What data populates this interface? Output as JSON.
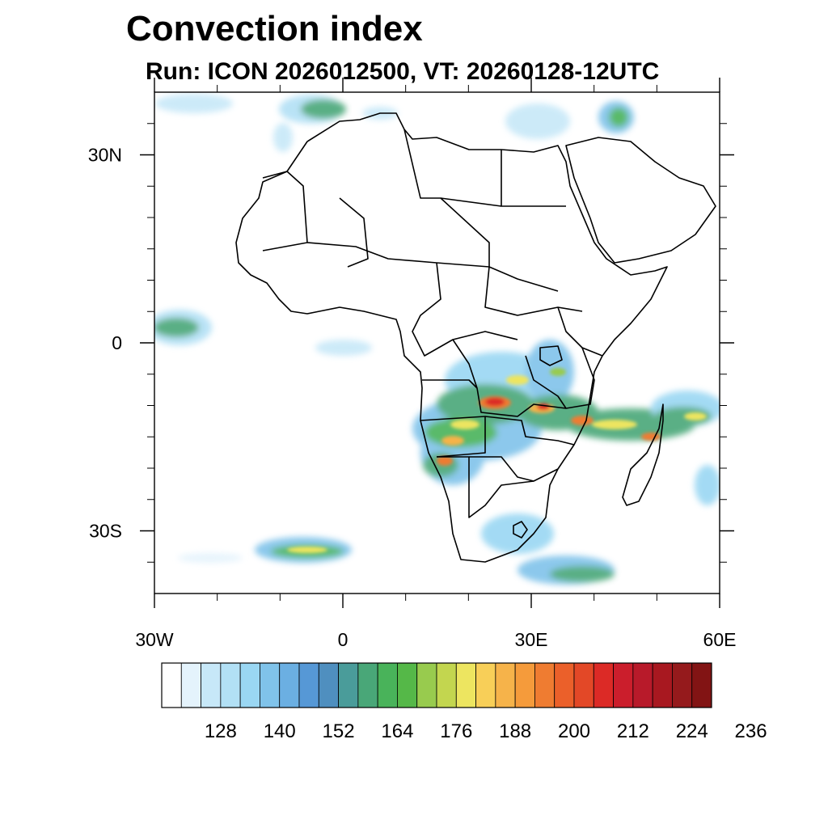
{
  "title": "Convection index",
  "subtitle": "Run: ICON 2026012500,  VT: 20260128-12UTC",
  "map": {
    "extent": {
      "lon_min": -30,
      "lon_max": 60,
      "lat_min": -40,
      "lat_max": 40
    },
    "lat_ticks": [
      {
        "lat": 30,
        "label": "30N"
      },
      {
        "lat": 0,
        "label": "0"
      },
      {
        "lat": -30,
        "label": "30S"
      }
    ],
    "lon_ticks": [
      {
        "lon": -30,
        "label": "30W"
      },
      {
        "lon": 0,
        "label": "0"
      },
      {
        "lon": 30,
        "label": "30E"
      },
      {
        "lon": 60,
        "label": "60E"
      }
    ],
    "minor_lat_ticks": [
      35,
      25,
      20,
      15,
      10,
      5,
      -5,
      -10,
      -15,
      -20,
      -25,
      -35
    ],
    "minor_lon_ticks": [
      -20,
      -10,
      10,
      20,
      40,
      50
    ]
  },
  "colorbar": {
    "labels": [
      "128",
      "140",
      "152",
      "164",
      "176",
      "188",
      "200",
      "212",
      "224",
      "236"
    ],
    "colors": [
      "#ffffff",
      "#e4f3fc",
      "#c7e8f8",
      "#b2e0f5",
      "#9ad7f3",
      "#80c3ea",
      "#6bafe2",
      "#5698d6",
      "#4f8fbf",
      "#4a9c9a",
      "#49a778",
      "#49b35a",
      "#55b848",
      "#98cb4e",
      "#c3d64f",
      "#ede560",
      "#f8cf58",
      "#f6b34a",
      "#f59b3b",
      "#ef7c31",
      "#eb602a",
      "#e34827",
      "#dc2a26",
      "#cb1e2c",
      "#b81a2a",
      "#a81820",
      "#951a1c",
      "#821414"
    ]
  }
}
